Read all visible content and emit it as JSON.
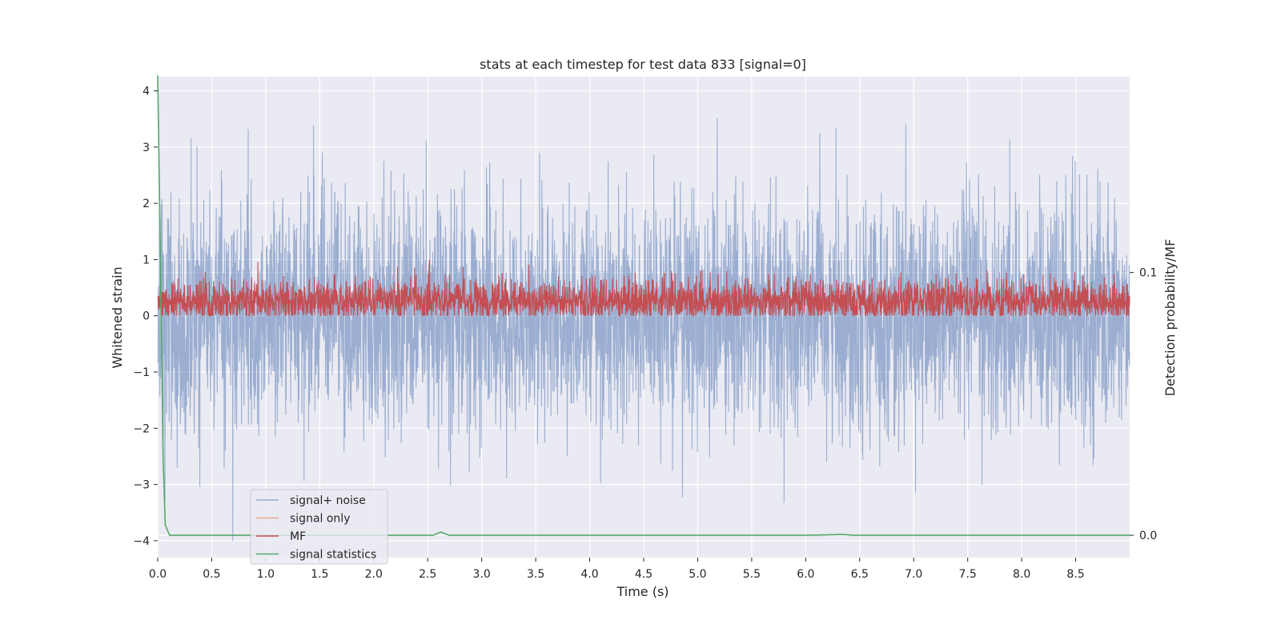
{
  "chart_data": {
    "type": "line",
    "title": "stats at each timestep for test data 833 [signal=0]",
    "xlabel": "Time (s)",
    "ylabel": "Whitened strain",
    "ylabel_right": "Detection probability/MF",
    "xlim": [
      0.0,
      9.0
    ],
    "ylim": [
      -4.3,
      4.25
    ],
    "ylim_right": [
      -0.0085,
      0.1745
    ],
    "xticks": [
      "0.0",
      "0.5",
      "1.0",
      "1.5",
      "2.0",
      "2.5",
      "3.0",
      "3.5",
      "4.0",
      "4.5",
      "5.0",
      "5.5",
      "6.0",
      "6.5",
      "7.0",
      "7.5",
      "8.0",
      "8.5"
    ],
    "yticks": [
      "4",
      "3",
      "2",
      "1",
      "0",
      "−1",
      "−2",
      "−3",
      "−4"
    ],
    "yticks_right": [
      "0.1",
      "0.0"
    ],
    "grid": true,
    "legend_position": "lower-left",
    "background": "#eaeaf2",
    "series": [
      {
        "name": "signal+ noise",
        "color": "#4c72b0",
        "axis": "left",
        "kind": "dense-noise",
        "mean": 0.0,
        "typical_amplitude": 1.0,
        "peak_range": [
          -4.0,
          3.9
        ]
      },
      {
        "name": "signal only",
        "color": "#dd8452",
        "axis": "left",
        "kind": "flat",
        "values_note": "no signal visible"
      },
      {
        "name": "MF",
        "color": "#c44e52",
        "axis": "left",
        "kind": "dense-noise",
        "mean": 0.25,
        "typical_amplitude": 0.2,
        "peak_range": [
          0.0,
          1.0
        ]
      },
      {
        "name": "signal statistics",
        "color": "#55a868",
        "axis": "right",
        "x": [
          0.0,
          0.02,
          0.05,
          0.07,
          0.11,
          0.5,
          1.0,
          2.0,
          2.55,
          2.62,
          2.7,
          3.0,
          4.0,
          5.0,
          6.0,
          6.35,
          6.45,
          7.0,
          8.0,
          9.0
        ],
        "values": [
          0.175,
          0.12,
          0.03,
          0.004,
          0.0,
          0.0,
          0.0,
          0.0,
          0.0,
          0.0012,
          0.0,
          0.0,
          0.0,
          0.0,
          0.0,
          0.0003,
          0.0,
          0.0,
          0.0,
          0.0
        ]
      }
    ]
  }
}
